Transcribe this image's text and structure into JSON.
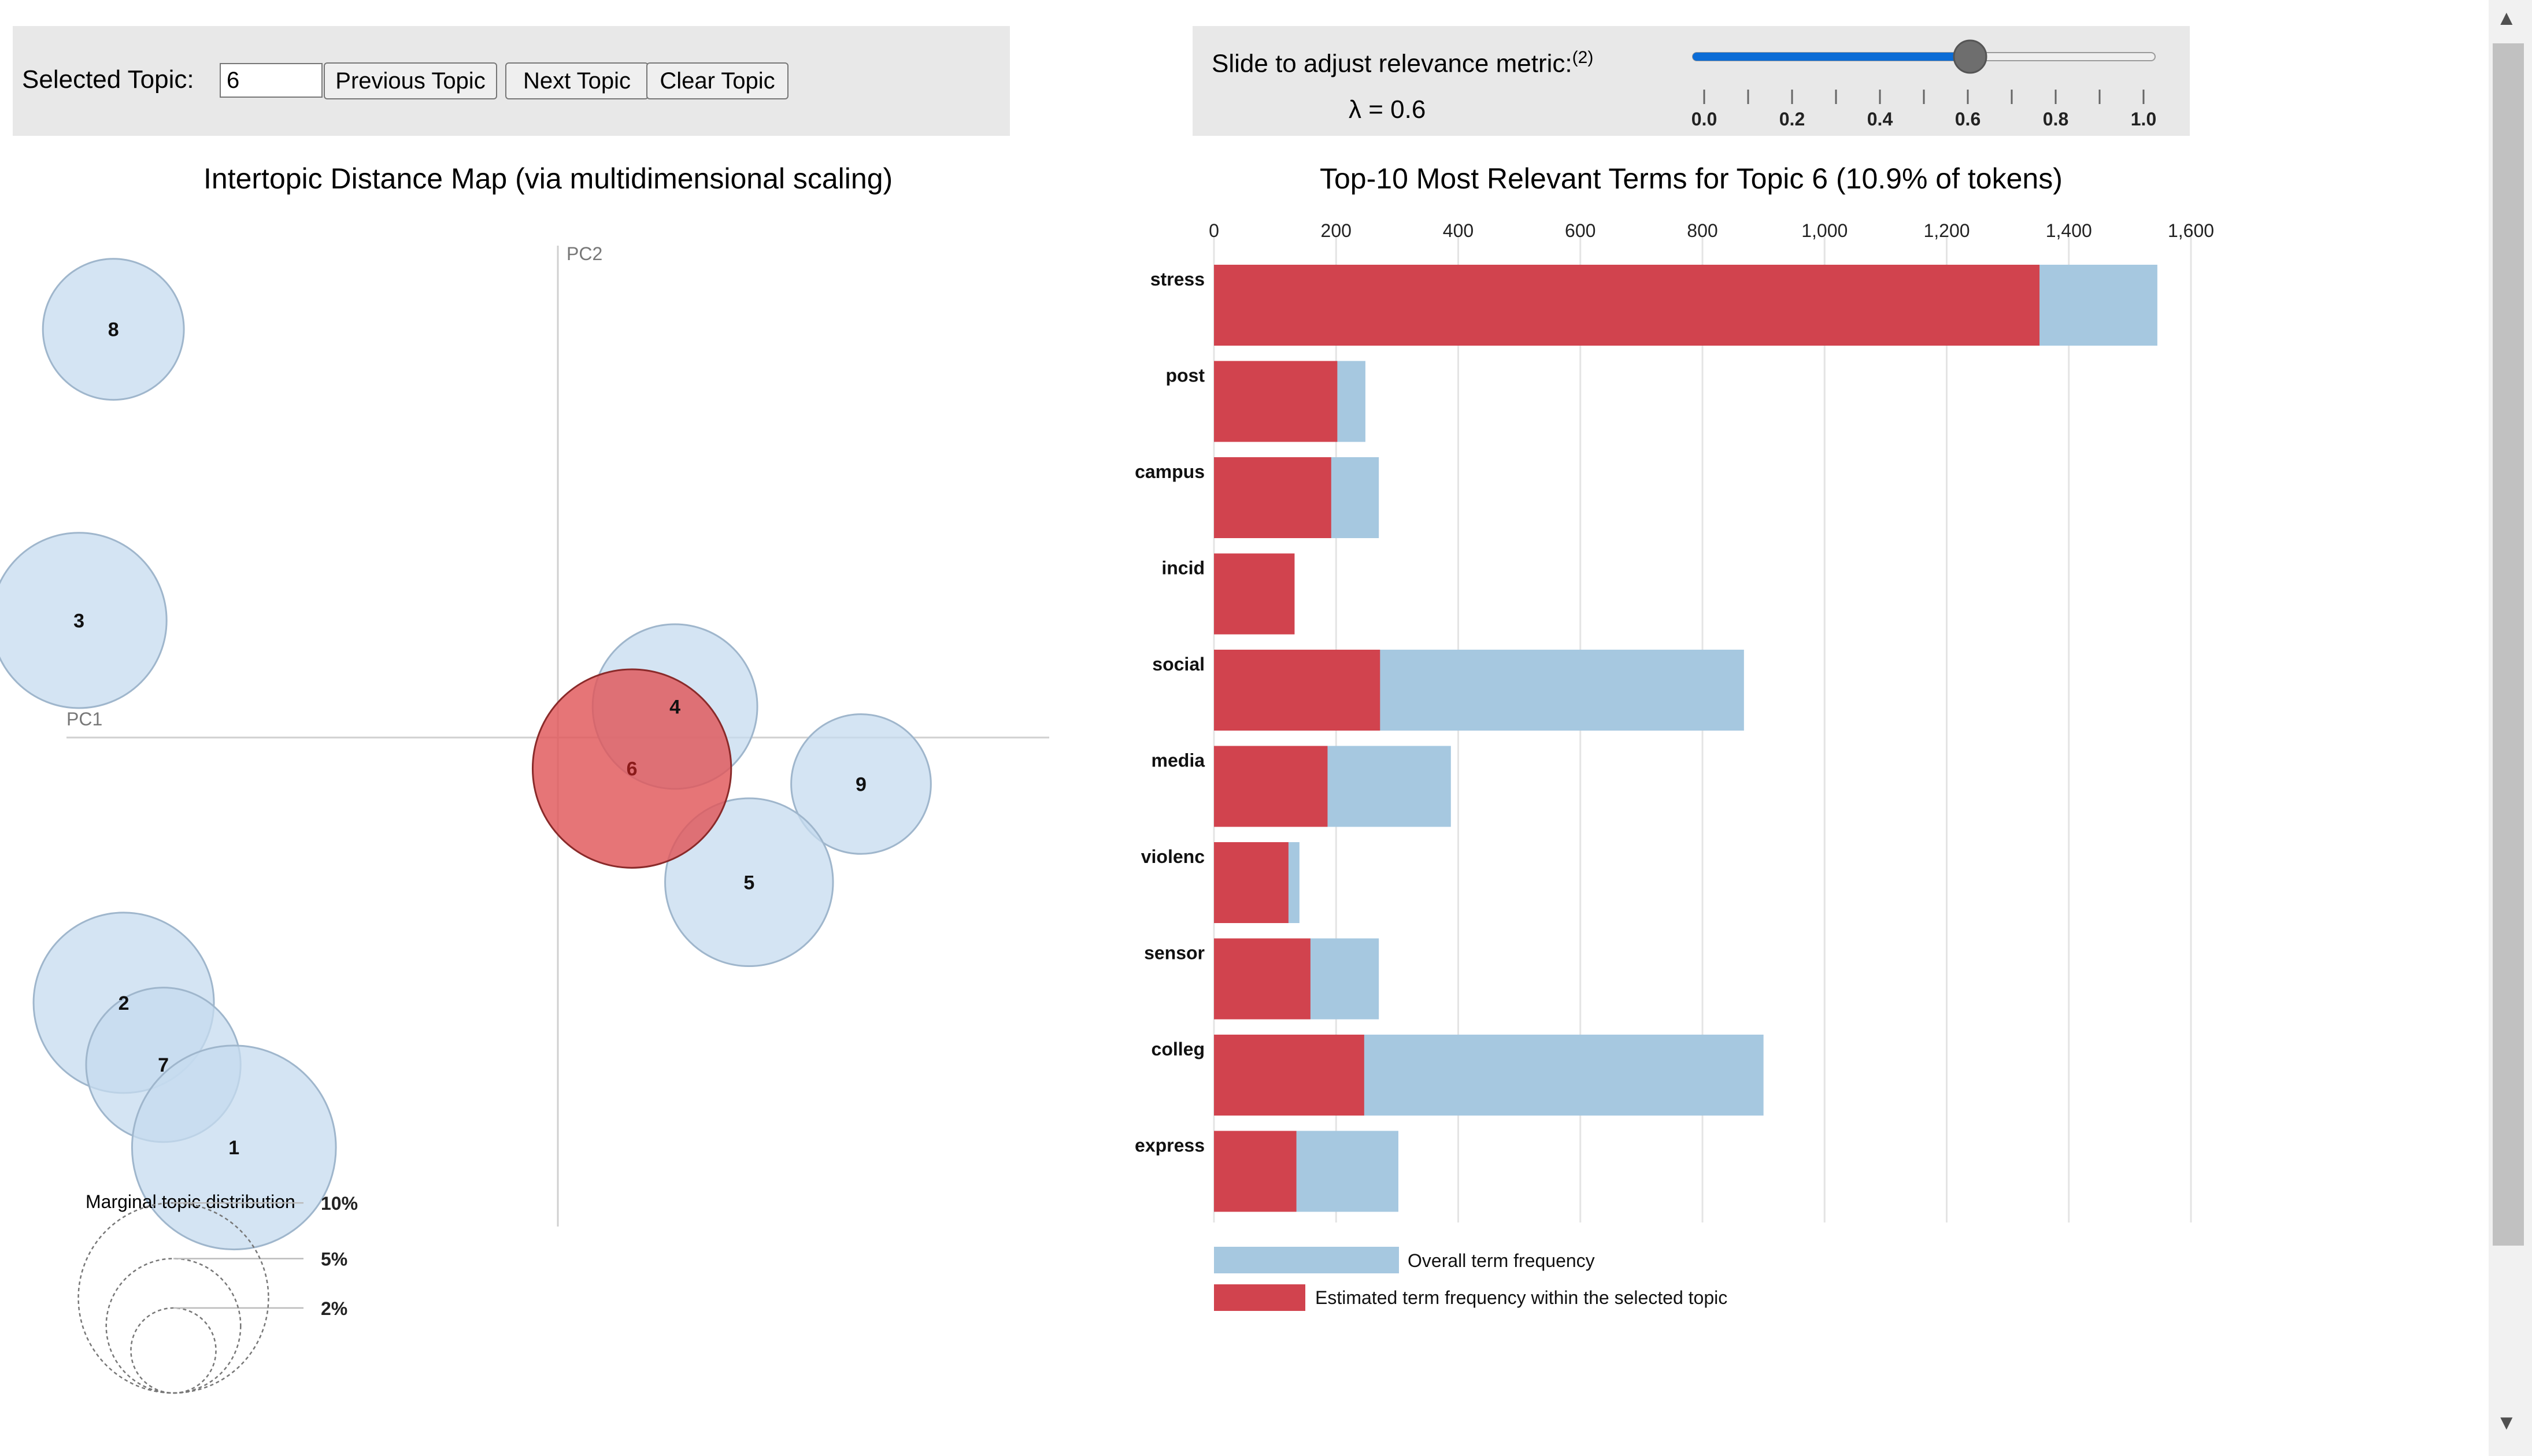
{
  "topic_control": {
    "label": "Selected Topic:",
    "value": "6",
    "prev_label": "Previous Topic",
    "next_label": "Next Topic",
    "clear_label": "Clear Topic"
  },
  "lambda_control": {
    "label": "Slide to adjust relevance metric:",
    "footnote": "(2)",
    "value_text": "λ = 0.6",
    "value": 0.6,
    "min": 0,
    "max": 1,
    "tick_labels": [
      "0.0",
      "0.2",
      "0.4",
      "0.6",
      "0.8",
      "1.0"
    ]
  },
  "colors": {
    "topic_fill": "#c6dbef",
    "selected_fill": "#e15759",
    "overall_bar": "#a6c8e0",
    "topic_bar": "#d1434e",
    "slider": "#0b6cd6",
    "panel_bg": "#e8e8e8"
  },
  "chart_data": [
    {
      "type": "scatter",
      "title": "Intertopic Distance Map (via multidimensional scaling)",
      "xlabel": "PC1",
      "ylabel": "PC2",
      "selected_topic": "6",
      "points": [
        {
          "label": "8",
          "x": -0.258,
          "y": 0.237,
          "marginal_pct": 5.5
        },
        {
          "label": "3",
          "x": -0.278,
          "y": 0.068,
          "marginal_pct": 8.5
        },
        {
          "label": "4",
          "x": 0.068,
          "y": 0.018,
          "marginal_pct": 7.5
        },
        {
          "label": "6",
          "x": 0.043,
          "y": -0.018,
          "marginal_pct": 10.9
        },
        {
          "label": "9",
          "x": 0.176,
          "y": -0.027,
          "marginal_pct": 5.4
        },
        {
          "label": "5",
          "x": 0.111,
          "y": -0.084,
          "marginal_pct": 7.8
        },
        {
          "label": "2",
          "x": -0.252,
          "y": -0.154,
          "marginal_pct": 9.0
        },
        {
          "label": "7",
          "x": -0.229,
          "y": -0.19,
          "marginal_pct": 6.6
        },
        {
          "label": "1",
          "x": -0.188,
          "y": -0.238,
          "marginal_pct": 11.5
        }
      ],
      "legend": {
        "title": "Marginal topic distribution",
        "entries": [
          "2%",
          "5%",
          "10%"
        ]
      }
    },
    {
      "type": "bar",
      "orientation": "horizontal",
      "title": "Top-10 Most Relevant Terms for Topic 6 (10.9% of tokens)",
      "categories": [
        "stress",
        "post",
        "campus",
        "incid",
        "social",
        "media",
        "violenc",
        "sensor",
        "colleg",
        "express"
      ],
      "series": [
        {
          "name": "Overall term frequency",
          "values": [
            1545,
            248,
            270,
            95,
            868,
            388,
            140,
            270,
            900,
            302
          ]
        },
        {
          "name": "Estimated term frequency within the selected topic",
          "values": [
            1352,
            202,
            192,
            132,
            272,
            186,
            122,
            158,
            246,
            135
          ]
        }
      ],
      "xlim": [
        0,
        1600
      ],
      "xticks": [
        "0",
        "200",
        "400",
        "600",
        "800",
        "1,000",
        "1,200",
        "1,400",
        "1,600"
      ],
      "grid": true
    }
  ]
}
